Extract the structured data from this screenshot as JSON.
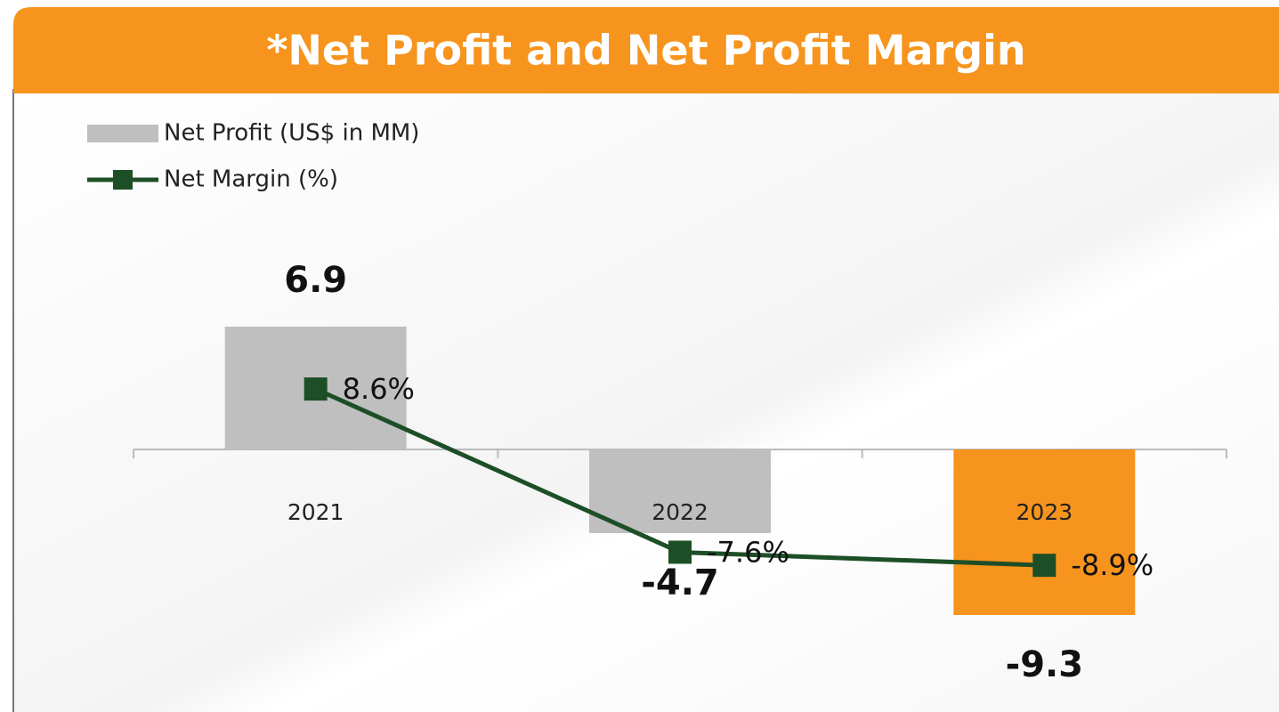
{
  "chart_data": {
    "type": "bar",
    "title": "*Net Profit and Net Profit Margin",
    "categories": [
      "2021",
      "2022",
      "2023"
    ],
    "series": [
      {
        "name": "Net Profit (US$ in MM)",
        "type": "bar",
        "colors": [
          "#bfbfbf",
          "#bfbfbf",
          "#f7941d"
        ],
        "values": [
          6.9,
          -4.7,
          -9.3
        ]
      },
      {
        "name": "Net Margin (%)",
        "type": "line",
        "axis": "y2",
        "color": "#1d4f27",
        "values": [
          8.6,
          -7.6,
          -8.9
        ],
        "value_labels": [
          "8.6%",
          "-7.6%",
          "-8.9%"
        ]
      }
    ],
    "ylim": [
      -12,
      12
    ],
    "y2lim": [
      -18.6,
      23.8
    ],
    "legend": "top-left"
  }
}
